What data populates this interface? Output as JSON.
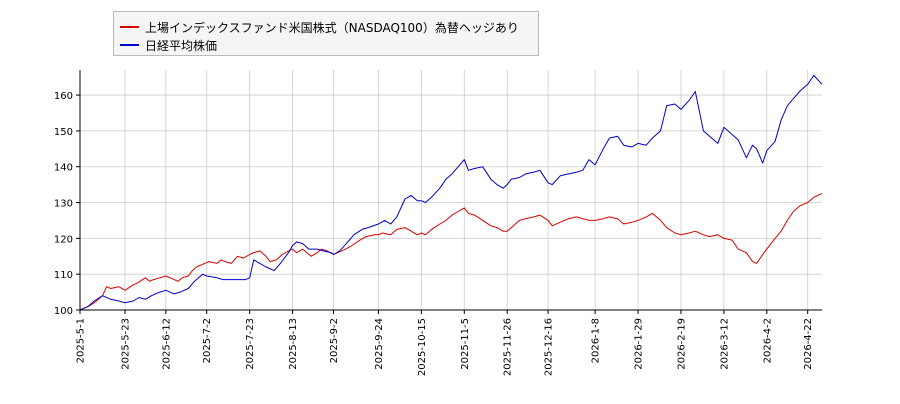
{
  "chart_data": {
    "type": "line",
    "ylim": [
      100,
      167
    ],
    "yticks": [
      100,
      110,
      120,
      130,
      140,
      150,
      160
    ],
    "grid": true,
    "legend_position": "top-left",
    "x_tick_labels": [
      "2025-5-1",
      "2025-5-23",
      "2025-6-12",
      "2025-7-2",
      "2025-7-23",
      "2025-8-13",
      "2025-9-2",
      "2025-9-24",
      "2025-10-15",
      "2025-11-5",
      "2025-11-26",
      "2025-12-16",
      "2026-1-8",
      "2026-1-29",
      "2026-2-19",
      "2026-3-12",
      "2026-4-2",
      "2026-4-22"
    ],
    "x_range": [
      "2025-5-1",
      "2026-4-29"
    ],
    "series": [
      {
        "name": "上場インデックスファンド米国株式（NASDAQ100）為替ヘッジあり",
        "color": "#dd0000",
        "points": [
          [
            "2025-5-1",
            100
          ],
          [
            "2025-5-5",
            101
          ],
          [
            "2025-5-8",
            102
          ],
          [
            "2025-5-12",
            104
          ],
          [
            "2025-5-14",
            106.5
          ],
          [
            "2025-5-16",
            106
          ],
          [
            "2025-5-20",
            106.5
          ],
          [
            "2025-5-23",
            105.5
          ],
          [
            "2025-5-27",
            107
          ],
          [
            "2025-5-29",
            107.5
          ],
          [
            "2025-6-2",
            109
          ],
          [
            "2025-6-4",
            108
          ],
          [
            "2025-6-6",
            108.5
          ],
          [
            "2025-6-9",
            109
          ],
          [
            "2025-6-12",
            109.5
          ],
          [
            "2025-6-16",
            108.5
          ],
          [
            "2025-6-18",
            108
          ],
          [
            "2025-6-20",
            109
          ],
          [
            "2025-6-23",
            109.5
          ],
          [
            "2025-6-25",
            111
          ],
          [
            "2025-6-27",
            112
          ],
          [
            "2025-7-1",
            113
          ],
          [
            "2025-7-3",
            113.5
          ],
          [
            "2025-7-7",
            113
          ],
          [
            "2025-7-9",
            114
          ],
          [
            "2025-7-11",
            113.5
          ],
          [
            "2025-7-14",
            113
          ],
          [
            "2025-7-17",
            115
          ],
          [
            "2025-7-20",
            114.5
          ],
          [
            "2025-7-23",
            115.5
          ],
          [
            "2025-7-25",
            116
          ],
          [
            "2025-7-28",
            116.5
          ],
          [
            "2025-7-31",
            115
          ],
          [
            "2025-8-2",
            113.5
          ],
          [
            "2025-8-5",
            114
          ],
          [
            "2025-8-8",
            115.5
          ],
          [
            "2025-8-11",
            116.5
          ],
          [
            "2025-8-13",
            117
          ],
          [
            "2025-8-15",
            116
          ],
          [
            "2025-8-18",
            117
          ],
          [
            "2025-8-20",
            116
          ],
          [
            "2025-8-22",
            115
          ],
          [
            "2025-8-25",
            116
          ],
          [
            "2025-8-27",
            117
          ],
          [
            "2025-8-30",
            116.5
          ],
          [
            "2025-9-2",
            115.5
          ],
          [
            "2025-9-4",
            116
          ],
          [
            "2025-9-8",
            117
          ],
          [
            "2025-9-11",
            118
          ],
          [
            "2025-9-15",
            119.5
          ],
          [
            "2025-9-18",
            120.5
          ],
          [
            "2025-9-22",
            121
          ],
          [
            "2025-9-24",
            121
          ],
          [
            "2025-9-26",
            121.5
          ],
          [
            "2025-9-30",
            121
          ],
          [
            "2025-10-3",
            122.5
          ],
          [
            "2025-10-7",
            123
          ],
          [
            "2025-10-10",
            122
          ],
          [
            "2025-10-13",
            121
          ],
          [
            "2025-10-15",
            121.5
          ],
          [
            "2025-10-17",
            121
          ],
          [
            "2025-10-20",
            122.5
          ],
          [
            "2025-10-24",
            124
          ],
          [
            "2025-10-27",
            125
          ],
          [
            "2025-10-30",
            126.5
          ],
          [
            "2025-11-2",
            127.5
          ],
          [
            "2025-11-5",
            128.5
          ],
          [
            "2025-11-7",
            127
          ],
          [
            "2025-11-10",
            126.5
          ],
          [
            "2025-11-14",
            125
          ],
          [
            "2025-11-18",
            123.5
          ],
          [
            "2025-11-21",
            123
          ],
          [
            "2025-11-24",
            122
          ],
          [
            "2025-11-26",
            122
          ],
          [
            "2025-11-28",
            123
          ],
          [
            "2025-12-2",
            125
          ],
          [
            "2025-12-5",
            125.5
          ],
          [
            "2025-12-9",
            126
          ],
          [
            "2025-12-12",
            126.5
          ],
          [
            "2025-12-16",
            125
          ],
          [
            "2025-12-18",
            123.5
          ],
          [
            "2025-12-22",
            124.5
          ],
          [
            "2025-12-26",
            125.5
          ],
          [
            "2025-12-30",
            126
          ],
          [
            "2026-1-2",
            125.5
          ],
          [
            "2026-1-5",
            125
          ],
          [
            "2026-1-8",
            125
          ],
          [
            "2026-1-12",
            125.5
          ],
          [
            "2026-1-15",
            126
          ],
          [
            "2026-1-19",
            125.5
          ],
          [
            "2026-1-22",
            124
          ],
          [
            "2026-1-26",
            124.5
          ],
          [
            "2026-1-29",
            125
          ],
          [
            "2026-2-2",
            126
          ],
          [
            "2026-2-5",
            127
          ],
          [
            "2026-2-9",
            125
          ],
          [
            "2026-2-12",
            123
          ],
          [
            "2026-2-16",
            121.5
          ],
          [
            "2026-2-19",
            121
          ],
          [
            "2026-2-23",
            121.5
          ],
          [
            "2026-2-26",
            122
          ],
          [
            "2026-3-2",
            121
          ],
          [
            "2026-3-5",
            120.5
          ],
          [
            "2026-3-9",
            121
          ],
          [
            "2026-3-12",
            120
          ],
          [
            "2026-3-16",
            119.5
          ],
          [
            "2026-3-19",
            117
          ],
          [
            "2026-3-23",
            116
          ],
          [
            "2026-3-26",
            113.5
          ],
          [
            "2026-3-28",
            113
          ],
          [
            "2026-3-31",
            115.5
          ],
          [
            "2026-4-2",
            117
          ],
          [
            "2026-4-6",
            120
          ],
          [
            "2026-4-9",
            122
          ],
          [
            "2026-4-12",
            125
          ],
          [
            "2026-4-15",
            127.5
          ],
          [
            "2026-4-18",
            129
          ],
          [
            "2026-4-22",
            130
          ],
          [
            "2026-4-25",
            131.5
          ],
          [
            "2026-4-29",
            132.5
          ]
        ]
      },
      {
        "name": "日経平均株価",
        "color": "#0000cc",
        "points": [
          [
            "2025-5-1",
            100
          ],
          [
            "2025-5-5",
            101
          ],
          [
            "2025-5-8",
            102.5
          ],
          [
            "2025-5-12",
            104
          ],
          [
            "2025-5-16",
            103
          ],
          [
            "2025-5-20",
            102.5
          ],
          [
            "2025-5-23",
            102
          ],
          [
            "2025-5-27",
            102.5
          ],
          [
            "2025-5-30",
            103.5
          ],
          [
            "2025-6-2",
            103
          ],
          [
            "2025-6-5",
            104
          ],
          [
            "2025-6-9",
            105
          ],
          [
            "2025-6-12",
            105.5
          ],
          [
            "2025-6-16",
            104.5
          ],
          [
            "2025-6-19",
            105
          ],
          [
            "2025-6-23",
            106
          ],
          [
            "2025-6-26",
            108
          ],
          [
            "2025-6-30",
            110
          ],
          [
            "2025-7-2",
            109.5
          ],
          [
            "2025-7-7",
            109
          ],
          [
            "2025-7-10",
            108.5
          ],
          [
            "2025-7-14",
            108.5
          ],
          [
            "2025-7-17",
            108.5
          ],
          [
            "2025-7-21",
            108.5
          ],
          [
            "2025-7-23",
            109
          ],
          [
            "2025-7-25",
            114
          ],
          [
            "2025-7-28",
            113
          ],
          [
            "2025-7-31",
            112
          ],
          [
            "2025-8-4",
            111
          ],
          [
            "2025-8-7",
            113
          ],
          [
            "2025-8-11",
            116
          ],
          [
            "2025-8-13",
            118
          ],
          [
            "2025-8-15",
            119
          ],
          [
            "2025-8-18",
            118.5
          ],
          [
            "2025-8-21",
            117
          ],
          [
            "2025-8-25",
            117
          ],
          [
            "2025-8-28",
            116.5
          ],
          [
            "2025-9-1",
            116
          ],
          [
            "2025-9-2",
            115.5
          ],
          [
            "2025-9-5",
            116.5
          ],
          [
            "2025-9-9",
            119
          ],
          [
            "2025-9-12",
            121
          ],
          [
            "2025-9-16",
            122.5
          ],
          [
            "2025-9-19",
            123
          ],
          [
            "2025-9-24",
            124
          ],
          [
            "2025-9-27",
            125
          ],
          [
            "2025-9-30",
            124
          ],
          [
            "2025-10-3",
            126
          ],
          [
            "2025-10-7",
            131
          ],
          [
            "2025-10-10",
            132
          ],
          [
            "2025-10-13",
            130.5
          ],
          [
            "2025-10-15",
            130.5
          ],
          [
            "2025-10-17",
            130
          ],
          [
            "2025-10-20",
            131.5
          ],
          [
            "2025-10-24",
            134
          ],
          [
            "2025-10-27",
            136.5
          ],
          [
            "2025-10-30",
            138
          ],
          [
            "2025-11-2",
            140
          ],
          [
            "2025-11-5",
            142
          ],
          [
            "2025-11-7",
            139
          ],
          [
            "2025-11-10",
            139.5
          ],
          [
            "2025-11-14",
            140
          ],
          [
            "2025-11-18",
            136.5
          ],
          [
            "2025-11-21",
            135
          ],
          [
            "2025-11-24",
            134
          ],
          [
            "2025-11-26",
            135
          ],
          [
            "2025-11-28",
            136.5
          ],
          [
            "2025-12-2",
            137
          ],
          [
            "2025-12-5",
            138
          ],
          [
            "2025-12-9",
            138.5
          ],
          [
            "2025-12-12",
            139
          ],
          [
            "2025-12-16",
            135.5
          ],
          [
            "2025-12-18",
            135
          ],
          [
            "2025-12-22",
            137.5
          ],
          [
            "2025-12-26",
            138
          ],
          [
            "2025-12-30",
            138.5
          ],
          [
            "2026-1-2",
            139
          ],
          [
            "2026-1-5",
            142
          ],
          [
            "2026-1-8",
            140.5
          ],
          [
            "2026-1-12",
            145
          ],
          [
            "2026-1-15",
            148
          ],
          [
            "2026-1-19",
            148.5
          ],
          [
            "2026-1-22",
            146
          ],
          [
            "2026-1-26",
            145.5
          ],
          [
            "2026-1-29",
            146.5
          ],
          [
            "2026-2-2",
            146
          ],
          [
            "2026-2-5",
            148
          ],
          [
            "2026-2-9",
            150
          ],
          [
            "2026-2-12",
            157
          ],
          [
            "2026-2-16",
            157.5
          ],
          [
            "2026-2-19",
            156
          ],
          [
            "2026-2-23",
            158.5
          ],
          [
            "2026-2-26",
            161
          ],
          [
            "2026-3-2",
            150
          ],
          [
            "2026-3-5",
            148.5
          ],
          [
            "2026-3-9",
            146.5
          ],
          [
            "2026-3-12",
            151
          ],
          [
            "2026-3-16",
            149
          ],
          [
            "2026-3-19",
            147.5
          ],
          [
            "2026-3-23",
            142.5
          ],
          [
            "2026-3-26",
            146
          ],
          [
            "2026-3-28",
            145
          ],
          [
            "2026-3-31",
            141
          ],
          [
            "2026-4-2",
            144.5
          ],
          [
            "2026-4-6",
            147
          ],
          [
            "2026-4-9",
            153
          ],
          [
            "2026-4-12",
            157
          ],
          [
            "2026-4-15",
            159
          ],
          [
            "2026-4-18",
            161
          ],
          [
            "2026-4-22",
            163
          ],
          [
            "2026-4-25",
            165.5
          ],
          [
            "2026-4-29",
            163
          ]
        ]
      }
    ]
  }
}
